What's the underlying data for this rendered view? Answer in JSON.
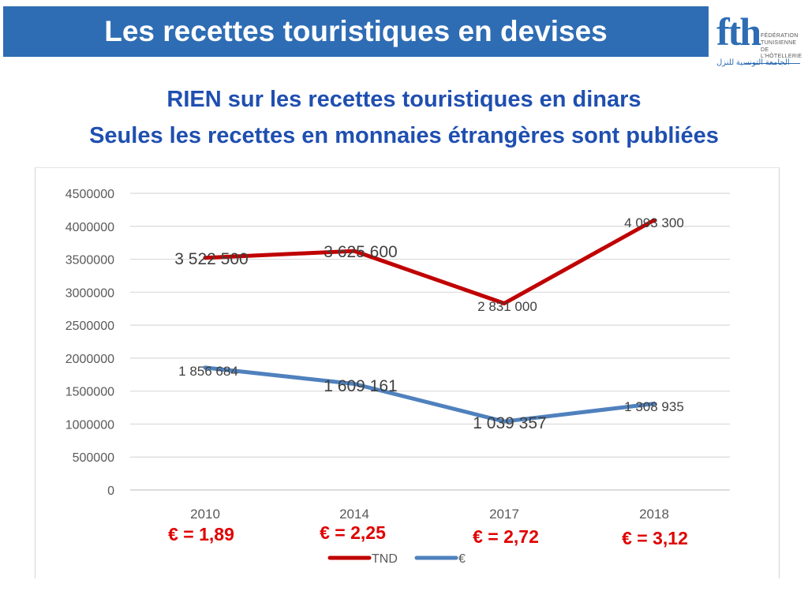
{
  "slide": {
    "title": "Les recettes touristiques en devises",
    "subtitle_line1": "RIEN sur les recettes touristiques en dinars",
    "subtitle_line2": "Seules les recettes en monnaies étrangères sont publiées"
  },
  "logo": {
    "main": "fth",
    "sub": [
      "FÉDÉRATION",
      "TUNISIENNE",
      "DE L'HÔTELLERIE"
    ],
    "arabic": "الجامعة التونسية للنزل"
  },
  "colors": {
    "header": "#2E6DB4",
    "tnd": "#C00000",
    "eur": "#4F81BD",
    "rate": "#E00000"
  },
  "chart_data": {
    "type": "line",
    "categories": [
      "2010",
      "2014",
      "2017",
      "2018"
    ],
    "y_ticks": [
      "0",
      "500000",
      "1000000",
      "1500000",
      "2000000",
      "2500000",
      "3000000",
      "3500000",
      "4000000",
      "4500000"
    ],
    "ylim": [
      0,
      4500000
    ],
    "grid": true,
    "legend_position": "bottom",
    "series": [
      {
        "name": "TND",
        "values": [
          3522500,
          3625600,
          2831000,
          4093300
        ],
        "labels": [
          "3 522 500",
          "3 625 600",
          "2 831 000",
          "4 093 300"
        ]
      },
      {
        "name": "€",
        "values": [
          1856684,
          1609161,
          1039357,
          1308935
        ],
        "labels": [
          "1 856 684",
          "1 609 161",
          "1 039 357",
          "1 308 935"
        ]
      }
    ],
    "exchange_rates": [
      "€ = 1,89",
      "€ = 2,25",
      "€ = 2,72",
      "€ = 3,12"
    ]
  }
}
